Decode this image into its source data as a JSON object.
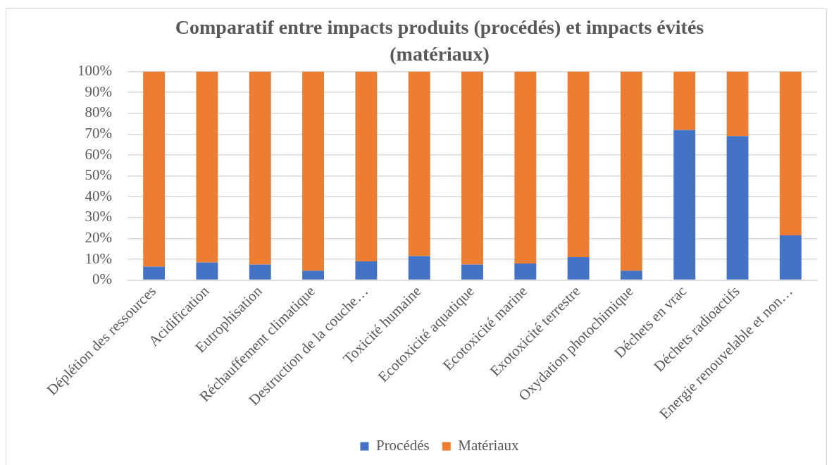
{
  "chart_data": {
    "type": "bar",
    "title": "Comparatif entre impacts produits (procédés) et impacts évités (matériaux)",
    "categories": [
      "Déplétion des ressources",
      "Acidification",
      "Eutrophisation",
      "Réchauffement climatique",
      "Destruction de la couche…",
      "Toxicité humaine",
      "Ecotoxicité aquatique",
      "Ecotoxicité marine",
      "Exotoxicité terrestre",
      "Oxydation photochimique",
      "Déchets en vrac",
      "Déchets radioactifs",
      "Energie renouvelable et non…"
    ],
    "series": [
      {
        "name": "Procédés",
        "color": "#4472c4",
        "values": [
          6.5,
          8.5,
          7.5,
          4.5,
          9,
          11.5,
          7.5,
          8,
          11,
          4.5,
          72,
          69,
          21.5
        ]
      },
      {
        "name": "Matériaux",
        "color": "#ed7d31",
        "values": [
          93.5,
          91.5,
          92.5,
          95.5,
          91,
          88.5,
          92.5,
          92,
          89,
          95.5,
          28,
          31,
          78.5
        ]
      }
    ],
    "stacked": true,
    "ylim": [
      0,
      100
    ],
    "yticks": [
      {
        "value": 0,
        "label": "0%"
      },
      {
        "value": 10,
        "label": "10%"
      },
      {
        "value": 20,
        "label": "20%"
      },
      {
        "value": 30,
        "label": "30%"
      },
      {
        "value": 40,
        "label": "40%"
      },
      {
        "value": 50,
        "label": "50%"
      },
      {
        "value": 60,
        "label": "60%"
      },
      {
        "value": 70,
        "label": "70%"
      },
      {
        "value": 80,
        "label": "80%"
      },
      {
        "value": 90,
        "label": "90%"
      },
      {
        "value": 100,
        "label": "100%"
      }
    ],
    "grid": "y",
    "legend": "bottom"
  }
}
